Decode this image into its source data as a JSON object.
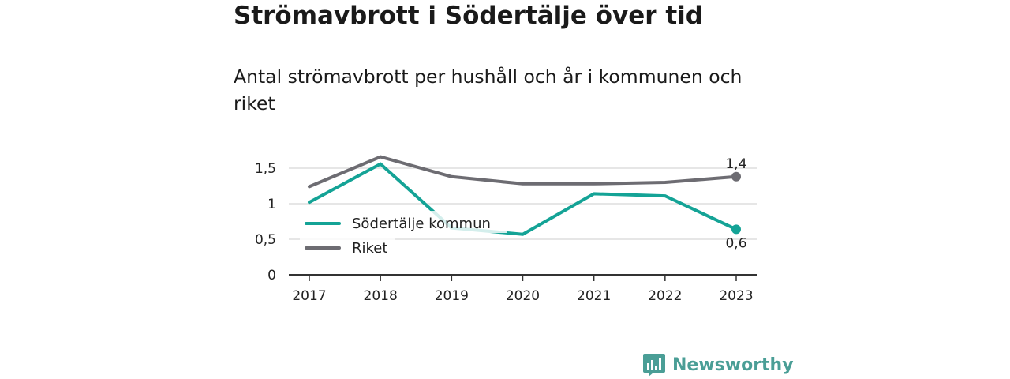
{
  "chart_data": {
    "type": "line",
    "title": "Strömavbrott i Södertälje över tid",
    "subtitle": "Antal strömavbrott per hushåll och år i kommunen och riket",
    "categories": [
      "2017",
      "2018",
      "2019",
      "2020",
      "2021",
      "2022",
      "2023"
    ],
    "series": [
      {
        "name": "Södertälje kommun",
        "color": "#14a396",
        "values": [
          1.02,
          1.56,
          0.66,
          0.57,
          1.14,
          1.11,
          0.64
        ],
        "end_label": "0,6"
      },
      {
        "name": "Riket",
        "color": "#6d6c72",
        "values": [
          1.24,
          1.66,
          1.38,
          1.28,
          1.28,
          1.3,
          1.38
        ],
        "end_label": "1,4"
      }
    ],
    "y_ticks": [
      {
        "value": 0,
        "label": "0"
      },
      {
        "value": 0.5,
        "label": "0,5"
      },
      {
        "value": 1,
        "label": "1"
      },
      {
        "value": 1.5,
        "label": "1,5"
      }
    ],
    "ylim": [
      0,
      1.5
    ],
    "grid": true,
    "legend_position": "bottom-left"
  },
  "brand": {
    "name": "Newsworthy",
    "icon": "newsworthy-logo-icon",
    "color": "#4a9e96"
  }
}
